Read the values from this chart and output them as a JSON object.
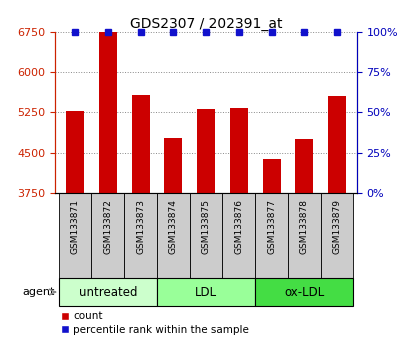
{
  "title": "GDS2307 / 202391_at",
  "samples": [
    "GSM133871",
    "GSM133872",
    "GSM133873",
    "GSM133874",
    "GSM133875",
    "GSM133876",
    "GSM133877",
    "GSM133878",
    "GSM133879"
  ],
  "counts": [
    5280,
    6750,
    5580,
    4780,
    5320,
    5340,
    4380,
    4760,
    5560
  ],
  "percentiles": [
    100,
    100,
    100,
    100,
    100,
    100,
    100,
    100,
    100
  ],
  "ylim_left": [
    3750,
    6750
  ],
  "yticks_left": [
    3750,
    4500,
    5250,
    6000,
    6750
  ],
  "ylim_right": [
    0,
    100
  ],
  "yticks_right": [
    0,
    25,
    50,
    75,
    100
  ],
  "bar_color": "#cc0000",
  "percentile_color": "#1111cc",
  "bar_width": 0.55,
  "groups": [
    {
      "label": "untreated",
      "indices": [
        0,
        1,
        2
      ],
      "color": "#ccffcc"
    },
    {
      "label": "LDL",
      "indices": [
        3,
        4,
        5
      ],
      "color": "#99ff99"
    },
    {
      "label": "ox-LDL",
      "indices": [
        6,
        7,
        8
      ],
      "color": "#44dd44"
    }
  ],
  "agent_label": "agent",
  "legend_count_label": "count",
  "legend_pct_label": "percentile rank within the sample",
  "tick_color_left": "#cc2200",
  "tick_color_right": "#0000bb",
  "grid_color": "#888888",
  "cell_color": "#cccccc"
}
